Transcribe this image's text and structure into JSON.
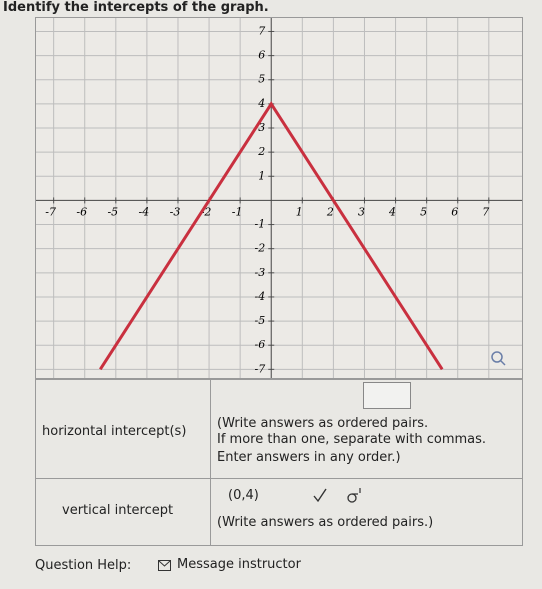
{
  "prompt": "Identify the intercepts of the graph.",
  "graph": {
    "xlim": [
      -7.6,
      8.1
    ],
    "ylim": [
      -7.4,
      7.6
    ],
    "xticks": [
      -7,
      -6,
      -5,
      -4,
      -3,
      -2,
      -1,
      1,
      2,
      3,
      4,
      5,
      6,
      7
    ],
    "yticks": [
      7,
      6,
      5,
      4,
      3,
      2,
      1,
      -1,
      -2,
      -3,
      -4,
      -5,
      -6,
      -7
    ],
    "grid": true,
    "line": {
      "x": [
        -5.5,
        0,
        5.5
      ],
      "y": [
        -7,
        4,
        -7
      ],
      "color": "#c9303f"
    }
  },
  "answers": {
    "horizontal": {
      "label": "horizontal intercept(s)",
      "instructions": [
        "(Write answers as ordered pairs.",
        "If more than one, separate with commas.",
        "Enter answers in any order.)"
      ]
    },
    "vertical": {
      "label": "vertical intercept",
      "answer": "(0,4)",
      "instruction": "(Write answers as ordered pairs.)"
    }
  },
  "footer": {
    "help": "Question Help:",
    "message": "Message instructor"
  }
}
